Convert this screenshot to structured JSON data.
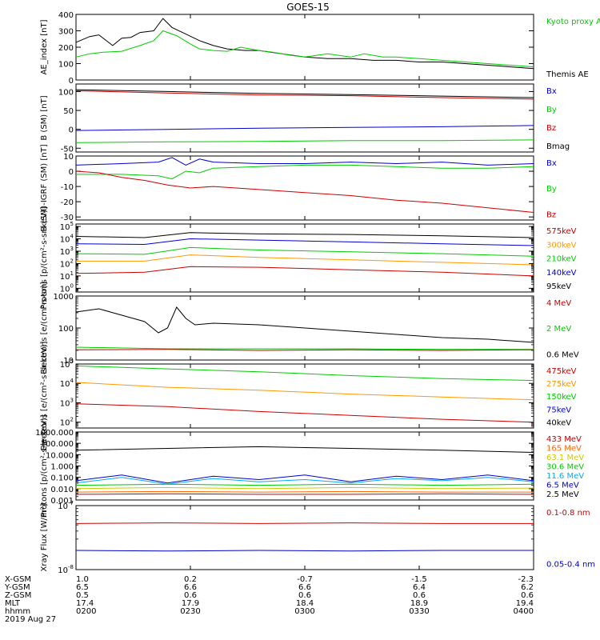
{
  "title": "GOES-15",
  "chart_data": [
    {
      "type": "line",
      "ylabel": "AE_index [nT]",
      "yticks": [
        "400",
        "300",
        "200",
        "100",
        "0"
      ],
      "ylim": [
        0,
        400
      ],
      "legend": [
        {
          "name": "Kyoto proxy AE",
          "color": "#00cc00"
        },
        {
          "name": "Themis AE",
          "color": "#000000"
        }
      ],
      "series": [
        {
          "name": "Themis AE",
          "color": "#000000",
          "x": [
            0,
            3,
            5,
            8,
            10,
            12,
            14,
            17,
            19,
            21,
            24,
            27,
            30,
            33,
            37,
            40,
            45,
            50,
            55,
            60,
            65,
            70,
            75,
            80,
            85,
            90,
            95,
            100
          ],
          "y": [
            230,
            265,
            275,
            210,
            255,
            260,
            290,
            300,
            375,
            320,
            280,
            240,
            210,
            190,
            180,
            180,
            160,
            140,
            130,
            130,
            120,
            120,
            110,
            110,
            100,
            90,
            80,
            70
          ]
        },
        {
          "name": "Kyoto proxy AE",
          "color": "#00cc00",
          "x": [
            0,
            3,
            6,
            10,
            14,
            17,
            19,
            22,
            25,
            27,
            30,
            33,
            36,
            40,
            43,
            47,
            50,
            55,
            60,
            63,
            67,
            70,
            75,
            80,
            85,
            90,
            95,
            100
          ],
          "y": [
            140,
            160,
            170,
            175,
            210,
            240,
            300,
            270,
            220,
            190,
            180,
            175,
            200,
            180,
            170,
            150,
            140,
            160,
            140,
            160,
            140,
            140,
            130,
            120,
            110,
            100,
            90,
            80
          ]
        }
      ]
    },
    {
      "type": "line",
      "ylabel": "B (SM) [nT]",
      "yticks": [
        "100",
        "50",
        "0",
        "-50"
      ],
      "ylim": [
        -60,
        120
      ],
      "legend": [
        {
          "name": "Bx",
          "color": "#0000cc"
        },
        {
          "name": "By",
          "color": "#00cc00"
        },
        {
          "name": "Bz",
          "color": "#cc0000"
        },
        {
          "name": "Bmag",
          "color": "#000000"
        }
      ],
      "series": [
        {
          "name": "Bmag",
          "color": "#000000",
          "x": [
            0,
            20,
            40,
            60,
            80,
            100
          ],
          "y": [
            105,
            100,
            95,
            92,
            88,
            84
          ]
        },
        {
          "name": "Bz",
          "color": "#cc0000",
          "x": [
            0,
            20,
            40,
            60,
            80,
            100
          ],
          "y": [
            102,
            96,
            91,
            89,
            84,
            80
          ]
        },
        {
          "name": "Bx",
          "color": "#0000cc",
          "x": [
            0,
            20,
            40,
            60,
            80,
            100
          ],
          "y": [
            -3,
            0,
            3,
            5,
            7,
            10
          ]
        },
        {
          "name": "By",
          "color": "#00cc00",
          "x": [
            0,
            20,
            40,
            60,
            80,
            100
          ],
          "y": [
            -35,
            -33,
            -32,
            -30,
            -30,
            -28
          ]
        }
      ]
    },
    {
      "type": "line",
      "ylabel": "B (SM)-IGRF (SM) [nT]",
      "yticks": [
        "10",
        "0",
        "-10",
        "-20",
        "-30"
      ],
      "ylim": [
        -32,
        10
      ],
      "legend": [
        {
          "name": "Bx",
          "color": "#0000cc"
        },
        {
          "name": "By",
          "color": "#00cc00"
        },
        {
          "name": "Bz",
          "color": "#cc0000"
        }
      ],
      "series": [
        {
          "name": "Bx",
          "color": "#0000cc",
          "x": [
            0,
            10,
            18,
            21,
            24,
            27,
            30,
            40,
            50,
            60,
            70,
            80,
            90,
            100
          ],
          "y": [
            4,
            5,
            6,
            9,
            4,
            8,
            6,
            5,
            5,
            6,
            5,
            6,
            4,
            5
          ]
        },
        {
          "name": "By",
          "color": "#00cc00",
          "x": [
            0,
            10,
            18,
            21,
            24,
            27,
            30,
            40,
            50,
            60,
            70,
            80,
            90,
            100
          ],
          "y": [
            -2,
            -2,
            -3,
            -5,
            0,
            -1,
            2,
            3,
            4,
            4,
            3,
            2,
            2,
            3
          ]
        },
        {
          "name": "Bz",
          "color": "#cc0000",
          "x": [
            0,
            5,
            10,
            15,
            20,
            25,
            30,
            40,
            50,
            60,
            70,
            80,
            90,
            100
          ],
          "y": [
            0,
            -1,
            -4,
            -6,
            -9,
            -11,
            -10,
            -12,
            -14,
            -16,
            -19,
            -21,
            -24,
            -27
          ]
        }
      ]
    },
    {
      "type": "line",
      "ylabel": "Protons [p/(cm²-s-sr-keV)]",
      "yscale": "log",
      "ytick_exps": [
        5,
        4,
        3,
        2,
        1,
        0
      ],
      "ylim_log": [
        -0.3,
        5.2
      ],
      "legend": [
        {
          "name": "575keV",
          "color": "#cc0000"
        },
        {
          "name": "300keV",
          "color": "#ff9900"
        },
        {
          "name": "210keV",
          "color": "#00cc00"
        },
        {
          "name": "140keV",
          "color": "#0000cc"
        },
        {
          "name": "95keV",
          "color": "#000000"
        }
      ],
      "series": [
        {
          "name": "95keV",
          "color": "#000000",
          "x": [
            0,
            15,
            25,
            40,
            60,
            80,
            100
          ],
          "y": [
            4.2,
            4.1,
            4.5,
            4.4,
            4.35,
            4.25,
            4.1
          ]
        },
        {
          "name": "140keV",
          "color": "#0000cc",
          "x": [
            0,
            15,
            25,
            40,
            60,
            80,
            100
          ],
          "y": [
            3.6,
            3.55,
            4.0,
            3.9,
            3.75,
            3.6,
            3.45
          ]
        },
        {
          "name": "210keV",
          "color": "#00cc00",
          "x": [
            0,
            15,
            25,
            40,
            60,
            80,
            100
          ],
          "y": [
            2.8,
            2.75,
            3.3,
            3.1,
            2.95,
            2.8,
            2.6
          ]
        },
        {
          "name": "300keV",
          "color": "#ff9900",
          "x": [
            0,
            15,
            25,
            40,
            60,
            80,
            100
          ],
          "y": [
            2.2,
            2.2,
            2.7,
            2.5,
            2.3,
            2.1,
            1.9
          ]
        },
        {
          "name": "575keV",
          "color": "#cc0000",
          "x": [
            0,
            15,
            25,
            40,
            60,
            80,
            100
          ],
          "y": [
            1.2,
            1.3,
            1.75,
            1.7,
            1.5,
            1.3,
            1.0
          ]
        }
      ]
    },
    {
      "type": "line",
      "ylabel": "Electrons [e/(cm²-s-sr)]",
      "yscale": "log",
      "ytick_labels": [
        {
          "exp": 3,
          "label": "1000"
        },
        {
          "exp": 2,
          "label": "100"
        },
        {
          "exp": 1,
          "label": "10"
        }
      ],
      "ylim_log": [
        1,
        3
      ],
      "legend": [
        {
          "name": "4 MeV",
          "color": "#cc0000"
        },
        {
          "name": "2 MeV",
          "color": "#00cc00"
        },
        {
          "name": "0.6 MeV",
          "color": "#000000"
        }
      ],
      "series": [
        {
          "name": "0.6 MeV",
          "color": "#000000",
          "x": [
            0,
            5,
            10,
            15,
            18,
            20,
            22,
            24,
            26,
            30,
            40,
            50,
            60,
            70,
            80,
            90,
            100
          ],
          "y": [
            2.5,
            2.6,
            2.4,
            2.2,
            1.85,
            2.0,
            2.65,
            2.3,
            2.1,
            2.15,
            2.1,
            2.0,
            1.9,
            1.8,
            1.7,
            1.65,
            1.55
          ]
        },
        {
          "name": "2 MeV",
          "color": "#00cc00",
          "x": [
            0,
            20,
            40,
            60,
            80,
            100
          ],
          "y": [
            1.4,
            1.35,
            1.35,
            1.35,
            1.33,
            1.33
          ]
        },
        {
          "name": "4 MeV",
          "color": "#cc0000",
          "x": [
            0,
            20,
            40,
            60,
            80,
            100
          ],
          "y": [
            1.32,
            1.33,
            1.3,
            1.32,
            1.3,
            1.32
          ]
        }
      ]
    },
    {
      "type": "line",
      "ylabel": "Electrons [e/(cm²-s-sr-keV)]",
      "yscale": "log",
      "ytick_exps": [
        5,
        4,
        3,
        2
      ],
      "ylim_log": [
        1.7,
        5.0
      ],
      "legend": [
        {
          "name": "475keV",
          "color": "#cc0000"
        },
        {
          "name": "275keV",
          "color": "#ff9900"
        },
        {
          "name": "150keV",
          "color": "#00cc00"
        },
        {
          "name": "75keV",
          "color": "#0000cc"
        },
        {
          "name": "40keV",
          "color": "#000000"
        }
      ],
      "series": [
        {
          "name": "150keV",
          "color": "#00cc00",
          "x": [
            0,
            20,
            40,
            60,
            80,
            100
          ],
          "y": [
            4.9,
            4.75,
            4.6,
            4.4,
            4.25,
            4.15
          ]
        },
        {
          "name": "275keV",
          "color": "#ff9900",
          "x": [
            0,
            20,
            40,
            60,
            80,
            100
          ],
          "y": [
            4.05,
            3.8,
            3.65,
            3.45,
            3.3,
            3.15
          ]
        },
        {
          "name": "475keV",
          "color": "#cc0000",
          "x": [
            0,
            20,
            40,
            60,
            80,
            100
          ],
          "y": [
            2.95,
            2.8,
            2.55,
            2.35,
            2.15,
            2.0
          ]
        }
      ]
    },
    {
      "type": "line",
      "ylabel": "Protons [p/(cm²-s-sr-keV)]",
      "yscale": "log",
      "ytick_labels": [
        {
          "exp": 3,
          "label": "1000.000"
        },
        {
          "exp": 2,
          "label": "100.000"
        },
        {
          "exp": 1,
          "label": "10.000"
        },
        {
          "exp": 0,
          "label": "1.000"
        },
        {
          "exp": -1,
          "label": "0.100"
        },
        {
          "exp": -2,
          "label": "0.010"
        },
        {
          "exp": -3,
          "label": "0.001"
        }
      ],
      "ylim_log": [
        -3,
        3
      ],
      "legend": [
        {
          "name": "433 MeV",
          "color": "#cc0000"
        },
        {
          "name": "165 MeV",
          "color": "#ff6600"
        },
        {
          "name": "63.1 MeV",
          "color": "#cccc00"
        },
        {
          "name": "30.6 MeV",
          "color": "#00cc00"
        },
        {
          "name": "11.6 MeV",
          "color": "#00aaff"
        },
        {
          "name": "6.5 MeV",
          "color": "#0000cc"
        },
        {
          "name": "2.5 MeV",
          "color": "#000000"
        }
      ],
      "series": [
        {
          "name": "2.5 MeV",
          "color": "#000000",
          "x": [
            0,
            20,
            40,
            60,
            80,
            100
          ],
          "y": [
            1.4,
            1.55,
            1.7,
            1.55,
            1.4,
            1.2
          ]
        },
        {
          "name": "6.5 MeV",
          "color": "#0000cc",
          "x": [
            0,
            10,
            20,
            30,
            40,
            50,
            60,
            70,
            80,
            90,
            100
          ],
          "y": [
            -1.3,
            -0.8,
            -1.5,
            -0.9,
            -1.2,
            -0.8,
            -1.4,
            -0.9,
            -1.2,
            -0.8,
            -1.3
          ]
        },
        {
          "name": "11.6 MeV",
          "color": "#00aaff",
          "x": [
            0,
            10,
            20,
            30,
            40,
            50,
            60,
            70,
            80,
            90,
            100
          ],
          "y": [
            -1.5,
            -1.0,
            -1.6,
            -1.1,
            -1.4,
            -1.2,
            -1.5,
            -1.1,
            -1.3,
            -1.0,
            -1.4
          ]
        },
        {
          "name": "30.6 MeV",
          "color": "#00cc00",
          "x": [
            0,
            20,
            40,
            60,
            80,
            100
          ],
          "y": [
            -1.7,
            -1.6,
            -1.7,
            -1.6,
            -1.7,
            -1.6
          ]
        },
        {
          "name": "63.1 MeV",
          "color": "#cccc00",
          "x": [
            0,
            20,
            40,
            60,
            80,
            100
          ],
          "y": [
            -2.0,
            -1.9,
            -2.0,
            -1.9,
            -2.0,
            -1.95
          ]
        },
        {
          "name": "165 MeV",
          "color": "#ff6600",
          "x": [
            0,
            20,
            40,
            60,
            80,
            100
          ],
          "y": [
            -2.3,
            -2.25,
            -2.3,
            -2.25,
            -2.3,
            -2.3
          ]
        },
        {
          "name": "433 MeV",
          "color": "#cc0000",
          "x": [
            0,
            20,
            40,
            60,
            80,
            100
          ],
          "y": [
            -2.5,
            -2.45,
            -2.5,
            -2.5,
            -2.45,
            -2.5
          ]
        }
      ]
    },
    {
      "type": "line",
      "ylabel": "Xray Flux [W/m²]",
      "yscale": "log",
      "ytick_exps": [
        -7,
        -8
      ],
      "ylim_log": [
        -8,
        -7
      ],
      "legend": [
        {
          "name": "0.1-0.8 nm",
          "color": "#cc0000"
        },
        {
          "name": "0.05-0.4 nm",
          "color": "#0000cc"
        }
      ],
      "series": [
        {
          "name": "0.1-0.8 nm",
          "color": "#cc0000",
          "x": [
            0,
            20,
            40,
            60,
            80,
            100
          ],
          "y": [
            -7.28,
            -7.27,
            -7.28,
            -7.27,
            -7.28,
            -7.28
          ]
        },
        {
          "name": "0.05-0.4 nm",
          "color": "#0000cc",
          "x": [
            0,
            20,
            40,
            60,
            80,
            100
          ],
          "y": [
            -7.7,
            -7.71,
            -7.7,
            -7.71,
            -7.7,
            -7.7
          ]
        }
      ]
    }
  ],
  "ephemeris": {
    "row_labels": [
      "X-GSM",
      "Y-GSM",
      "Z-GSM",
      "MLT",
      "hhmm",
      "2019 Aug 27"
    ],
    "columns": [
      [
        "1.0",
        "6.5",
        "0.5",
        "17.4",
        "0200"
      ],
      [
        "0.2",
        "6.6",
        "0.6",
        "17.9",
        "0230"
      ],
      [
        "-0.7",
        "6.6",
        "0.6",
        "18.4",
        "0300"
      ],
      [
        "-1.5",
        "6.4",
        "0.6",
        "18.9",
        "0330"
      ],
      [
        "-2.3",
        "6.2",
        "0.6",
        "19.4",
        "0400"
      ]
    ]
  }
}
